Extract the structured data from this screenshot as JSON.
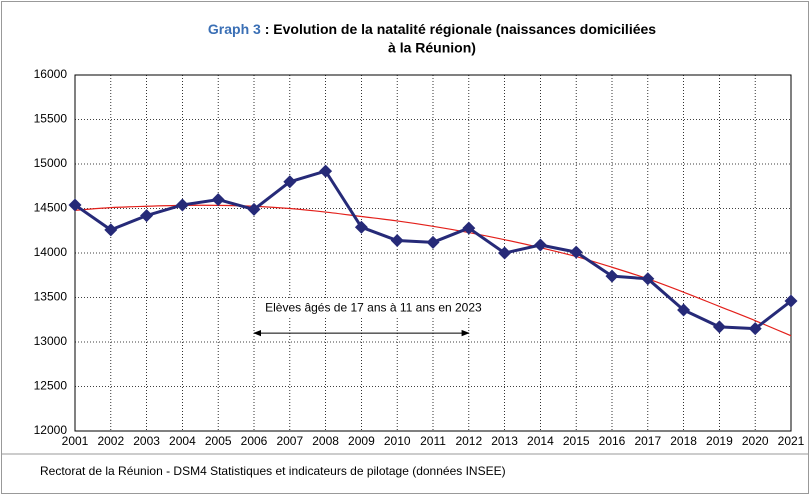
{
  "chart_data": {
    "type": "line",
    "title": {
      "label": "Graph 3",
      "lines": [
        " : Evolution de la natalité régionale (naissances domiciliées",
        "à la Réunion)"
      ]
    },
    "x": [
      2001,
      2002,
      2003,
      2004,
      2005,
      2006,
      2007,
      2008,
      2009,
      2010,
      2011,
      2012,
      2013,
      2014,
      2015,
      2016,
      2017,
      2018,
      2019,
      2020,
      2021
    ],
    "xlim": [
      2001,
      2021
    ],
    "xticks": [
      2001,
      2002,
      2003,
      2004,
      2005,
      2006,
      2007,
      2008,
      2009,
      2010,
      2011,
      2012,
      2013,
      2014,
      2015,
      2016,
      2017,
      2018,
      2019,
      2020,
      2021
    ],
    "ylim": [
      12000,
      16000
    ],
    "yticks": [
      12000,
      12500,
      13000,
      13500,
      14000,
      14500,
      15000,
      15500,
      16000
    ],
    "grid": true,
    "series": [
      {
        "color": "#262a78",
        "values": [
          14540,
          14260,
          14420,
          14540,
          14600,
          14490,
          14800,
          14920,
          14290,
          14140,
          14120,
          14280,
          14000,
          14090,
          14010,
          13740,
          13710,
          13360,
          13170,
          13150,
          13460
        ]
      },
      {
        "color": "#e3201b",
        "smooth": true,
        "values": [
          14480,
          14510,
          14525,
          14535,
          14535,
          14525,
          14500,
          14460,
          14410,
          14360,
          14300,
          14230,
          14150,
          14060,
          13960,
          13840,
          13710,
          13560,
          13400,
          13240,
          13070
        ]
      }
    ],
    "annotation": {
      "text": "Elèves âgés de 17 ans à 11 ans en 2023",
      "x_span": [
        2006,
        2012
      ],
      "y": 13100
    },
    "source": "Rectorat de la Réunion - DSM4 Statistiques et indicateurs de pilotage (données INSEE)"
  }
}
